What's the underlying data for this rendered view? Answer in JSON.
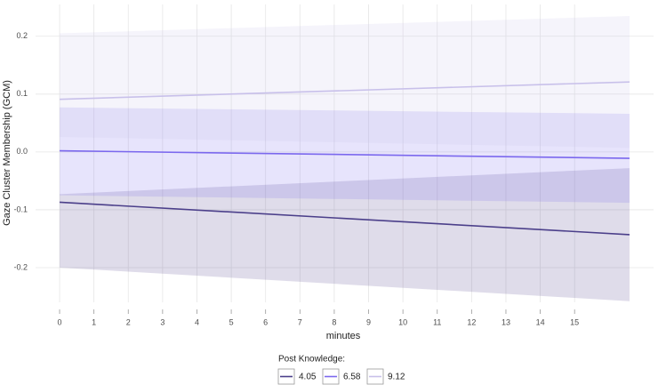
{
  "chart_data": {
    "type": "line",
    "x_label": "minutes",
    "y_label": "Gaze Cluster Membership (GCM)",
    "legend_title": "Post Knowledge:",
    "x": [
      0,
      16.6
    ],
    "series": [
      {
        "name": "4.05",
        "color": "#4b3f8a",
        "values": [
          -0.087,
          -0.143
        ],
        "lower": [
          -0.2,
          -0.258
        ],
        "upper": [
          -0.073,
          -0.028
        ]
      },
      {
        "name": "6.58",
        "color": "#7b68ee",
        "values": [
          0.002,
          -0.011
        ],
        "lower": [
          -0.075,
          -0.088
        ],
        "upper": [
          0.077,
          0.066
        ]
      },
      {
        "name": "9.12",
        "color": "#c8c0ea",
        "values": [
          0.091,
          0.121
        ],
        "lower": [
          0.026,
          0.007
        ],
        "upper": [
          0.205,
          0.235
        ]
      }
    ],
    "xlim": [
      -0.7,
      17.3
    ],
    "ylim": [
      -0.26,
      0.255
    ],
    "xticks": [
      0,
      1,
      2,
      3,
      4,
      5,
      6,
      7,
      8,
      9,
      10,
      11,
      12,
      13,
      14,
      15
    ],
    "yticks": [
      -0.2,
      -0.1,
      {
        "value": 0,
        "label": "0.0"
      },
      0.1,
      0.2
    ],
    "grid": true
  }
}
